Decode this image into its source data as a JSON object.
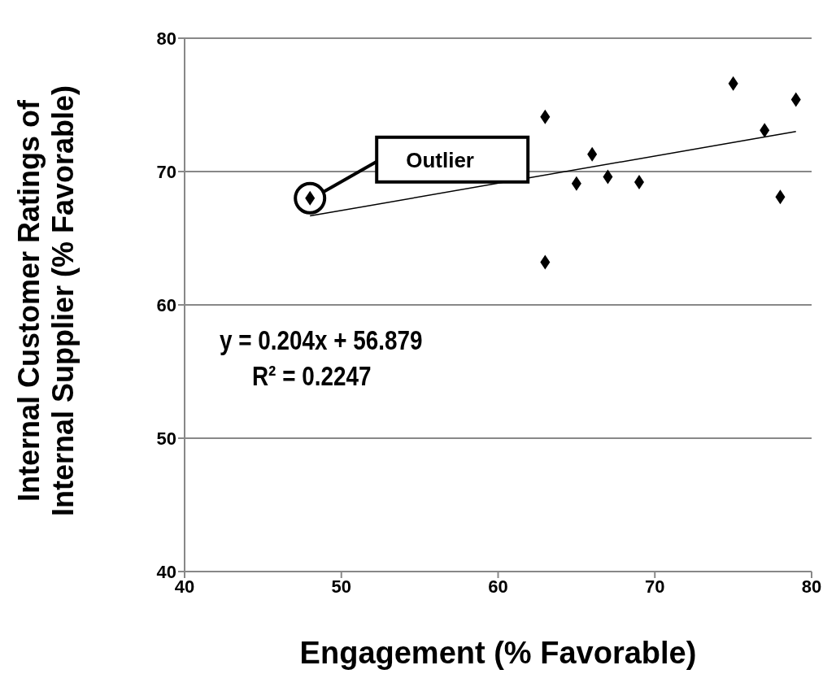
{
  "chart_data": {
    "type": "scatter",
    "xlabel": "Engagement (% Favorable)",
    "ylabel": "Internal Customer Ratings of\nInternal Supplier  (% Favorable)",
    "xlim": [
      40,
      80
    ],
    "xticks": [
      40,
      50,
      60,
      70,
      80
    ],
    "ylim": [
      40,
      80
    ],
    "yticks": [
      40,
      50,
      60,
      70,
      80
    ],
    "grid": "y",
    "marker": "diamond",
    "series": [
      {
        "color": "#000000",
        "x": [
          48,
          63,
          63,
          65,
          66,
          67,
          69,
          75,
          77,
          78,
          79
        ],
        "values": [
          68.0,
          74.1,
          63.2,
          69.1,
          71.3,
          69.6,
          69.2,
          76.6,
          73.1,
          68.1,
          75.4
        ]
      },
      {
        "type": "line",
        "color": "#000000",
        "marker": "none",
        "x": [
          48,
          79
        ],
        "values": [
          66.67,
          73.0
        ]
      }
    ],
    "annotations": [
      "Outlier",
      "y = 0.204x + 56.879",
      "R² = 0.2247"
    ]
  }
}
